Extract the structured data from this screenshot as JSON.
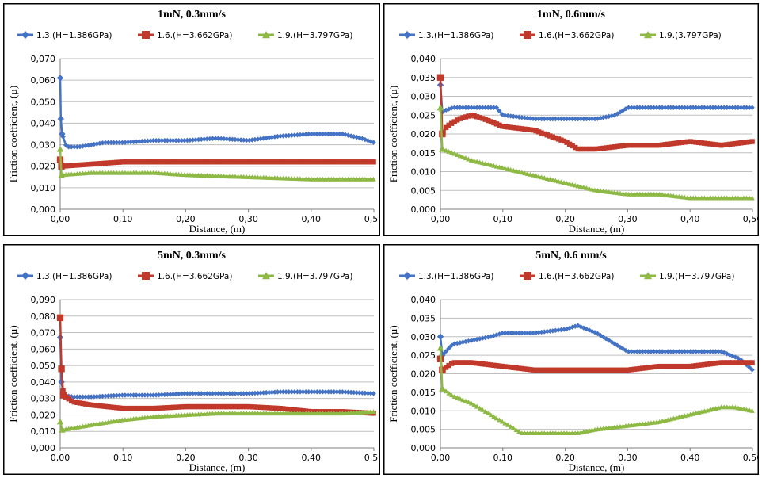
{
  "colors": {
    "s1": "#4472C4",
    "s2": "#C0392B",
    "s3": "#8DB944"
  },
  "chart_data": [
    {
      "type": "line",
      "title": "1mN, 0.3mm/s",
      "xlabel": "Distance, (m)",
      "ylabel": "Friction coefficient, (µ)",
      "xlim": [
        0,
        0.5
      ],
      "ylim": [
        0,
        0.07
      ],
      "xticks": [
        "0,00",
        "0,10",
        "0,20",
        "0,30",
        "0,40",
        "0,50"
      ],
      "yticks": [
        "0,000",
        "0,010",
        "0,020",
        "0,030",
        "0,040",
        "0,050",
        "0,060",
        "0,070"
      ],
      "grid": true,
      "legend": "top",
      "series": [
        {
          "name": "1.3.(H=1.386GPa)",
          "points": [
            [
              0,
              0.061
            ],
            [
              0.001,
              0.042
            ],
            [
              0.003,
              0.035
            ],
            [
              0.01,
              0.029
            ],
            [
              0.03,
              0.029
            ],
            [
              0.05,
              0.03
            ],
            [
              0.07,
              0.031
            ],
            [
              0.1,
              0.031
            ],
            [
              0.15,
              0.032
            ],
            [
              0.2,
              0.032
            ],
            [
              0.25,
              0.033
            ],
            [
              0.3,
              0.032
            ],
            [
              0.35,
              0.034
            ],
            [
              0.4,
              0.035
            ],
            [
              0.45,
              0.035
            ],
            [
              0.48,
              0.033
            ],
            [
              0.5,
              0.031
            ]
          ]
        },
        {
          "name": "1.6.(H=3.662GPa)",
          "points": [
            [
              0,
              0.023
            ],
            [
              0.002,
              0.02
            ],
            [
              0.05,
              0.021
            ],
            [
              0.1,
              0.022
            ],
            [
              0.2,
              0.022
            ],
            [
              0.3,
              0.022
            ],
            [
              0.4,
              0.022
            ],
            [
              0.45,
              0.022
            ],
            [
              0.5,
              0.022
            ]
          ]
        },
        {
          "name": "1.9.(H=3.797GPa)",
          "points": [
            [
              0,
              0.028
            ],
            [
              0.002,
              0.016
            ],
            [
              0.05,
              0.017
            ],
            [
              0.1,
              0.017
            ],
            [
              0.15,
              0.017
            ],
            [
              0.2,
              0.016
            ],
            [
              0.3,
              0.015
            ],
            [
              0.4,
              0.014
            ],
            [
              0.5,
              0.014
            ]
          ]
        }
      ]
    },
    {
      "type": "line",
      "title": "1mN, 0.6mm/s",
      "xlabel": "Distance, (m)",
      "ylabel": "Friction coefficient, (µ)",
      "xlim": [
        0,
        0.5
      ],
      "ylim": [
        0,
        0.04
      ],
      "xticks": [
        "0,00",
        "0,10",
        "0,20",
        "0,30",
        "0,40",
        "0,50"
      ],
      "yticks": [
        "0,000",
        "0,005",
        "0,010",
        "0,015",
        "0,020",
        "0,025",
        "0,030",
        "0,035",
        "0,040"
      ],
      "grid": true,
      "legend": "top",
      "series": [
        {
          "name": "1.3.(H=1.386GPa)",
          "points": [
            [
              0,
              0.033
            ],
            [
              0.003,
              0.026
            ],
            [
              0.02,
              0.027
            ],
            [
              0.05,
              0.027
            ],
            [
              0.09,
              0.027
            ],
            [
              0.1,
              0.025
            ],
            [
              0.15,
              0.024
            ],
            [
              0.2,
              0.024
            ],
            [
              0.25,
              0.024
            ],
            [
              0.28,
              0.025
            ],
            [
              0.3,
              0.027
            ],
            [
              0.35,
              0.027
            ],
            [
              0.4,
              0.027
            ],
            [
              0.45,
              0.027
            ],
            [
              0.5,
              0.027
            ]
          ]
        },
        {
          "name": "1.6.(H=3.662GPa)",
          "points": [
            [
              0,
              0.035
            ],
            [
              0.003,
              0.02
            ],
            [
              0.01,
              0.022
            ],
            [
              0.03,
              0.024
            ],
            [
              0.05,
              0.025
            ],
            [
              0.07,
              0.024
            ],
            [
              0.1,
              0.022
            ],
            [
              0.15,
              0.021
            ],
            [
              0.2,
              0.018
            ],
            [
              0.22,
              0.016
            ],
            [
              0.25,
              0.016
            ],
            [
              0.3,
              0.017
            ],
            [
              0.35,
              0.017
            ],
            [
              0.4,
              0.018
            ],
            [
              0.45,
              0.017
            ],
            [
              0.5,
              0.018
            ]
          ]
        },
        {
          "name": "1.9.(3.797GPa)",
          "points": [
            [
              0,
              0.027
            ],
            [
              0.003,
              0.016
            ],
            [
              0.05,
              0.013
            ],
            [
              0.1,
              0.011
            ],
            [
              0.15,
              0.009
            ],
            [
              0.2,
              0.007
            ],
            [
              0.25,
              0.005
            ],
            [
              0.3,
              0.004
            ],
            [
              0.35,
              0.004
            ],
            [
              0.4,
              0.003
            ],
            [
              0.45,
              0.003
            ],
            [
              0.5,
              0.003
            ]
          ]
        }
      ]
    },
    {
      "type": "line",
      "title": "5mN, 0.3mm/s",
      "xlabel": "Distance, (m)",
      "ylabel": "Friction coefficient, (µ)",
      "xlim": [
        0,
        0.5
      ],
      "ylim": [
        0,
        0.09
      ],
      "xticks": [
        "0,00",
        "0,10",
        "0,20",
        "0,30",
        "0,40",
        "0,50"
      ],
      "yticks": [
        "0,000",
        "0,010",
        "0,020",
        "0,030",
        "0,040",
        "0,050",
        "0,060",
        "0,070",
        "0,080",
        "0,090"
      ],
      "grid": true,
      "legend": "top",
      "series": [
        {
          "name": "1.3.(H=1.386GPa)",
          "points": [
            [
              0,
              0.067
            ],
            [
              0.002,
              0.04
            ],
            [
              0.005,
              0.032
            ],
            [
              0.02,
              0.031
            ],
            [
              0.05,
              0.031
            ],
            [
              0.1,
              0.032
            ],
            [
              0.15,
              0.032
            ],
            [
              0.2,
              0.033
            ],
            [
              0.25,
              0.033
            ],
            [
              0.3,
              0.033
            ],
            [
              0.35,
              0.034
            ],
            [
              0.4,
              0.034
            ],
            [
              0.45,
              0.034
            ],
            [
              0.5,
              0.033
            ]
          ]
        },
        {
          "name": "1.6.(H=3.662GPa)",
          "points": [
            [
              0,
              0.079
            ],
            [
              0.002,
              0.048
            ],
            [
              0.005,
              0.032
            ],
            [
              0.02,
              0.028
            ],
            [
              0.05,
              0.026
            ],
            [
              0.1,
              0.024
            ],
            [
              0.15,
              0.024
            ],
            [
              0.2,
              0.025
            ],
            [
              0.25,
              0.025
            ],
            [
              0.3,
              0.025
            ],
            [
              0.35,
              0.024
            ],
            [
              0.4,
              0.022
            ],
            [
              0.45,
              0.022
            ],
            [
              0.5,
              0.021
            ]
          ]
        },
        {
          "name": "1.9.(H=3.797GPa)",
          "points": [
            [
              0,
              0.016
            ],
            [
              0.003,
              0.011
            ],
            [
              0.02,
              0.012
            ],
            [
              0.05,
              0.014
            ],
            [
              0.1,
              0.017
            ],
            [
              0.15,
              0.019
            ],
            [
              0.2,
              0.02
            ],
            [
              0.25,
              0.021
            ],
            [
              0.3,
              0.021
            ],
            [
              0.35,
              0.021
            ],
            [
              0.4,
              0.021
            ],
            [
              0.45,
              0.021
            ],
            [
              0.5,
              0.022
            ]
          ]
        }
      ]
    },
    {
      "type": "line",
      "title": "5mN, 0.6 mm/s",
      "xlabel": "Distance, (m)",
      "ylabel": "Friction coefficient, (µ)",
      "xlim": [
        0,
        0.5
      ],
      "ylim": [
        0,
        0.04
      ],
      "xticks": [
        "0,00",
        "0,10",
        "0,20",
        "0,30",
        "0,40",
        "0,50"
      ],
      "yticks": [
        "0,000",
        "0,005",
        "0,010",
        "0,015",
        "0,020",
        "0,025",
        "0,030",
        "0,035",
        "0,040"
      ],
      "grid": true,
      "legend": "top",
      "series": [
        {
          "name": "1.3.(H=1.386GPa)",
          "points": [
            [
              0,
              0.03
            ],
            [
              0.003,
              0.025
            ],
            [
              0.02,
              0.028
            ],
            [
              0.05,
              0.029
            ],
            [
              0.08,
              0.03
            ],
            [
              0.1,
              0.031
            ],
            [
              0.15,
              0.031
            ],
            [
              0.2,
              0.032
            ],
            [
              0.22,
              0.033
            ],
            [
              0.25,
              0.031
            ],
            [
              0.28,
              0.028
            ],
            [
              0.3,
              0.026
            ],
            [
              0.35,
              0.026
            ],
            [
              0.4,
              0.026
            ],
            [
              0.45,
              0.026
            ],
            [
              0.48,
              0.024
            ],
            [
              0.5,
              0.021
            ]
          ]
        },
        {
          "name": "1.6.(H=3.662GPa)",
          "points": [
            [
              0,
              0.024
            ],
            [
              0.003,
              0.021
            ],
            [
              0.02,
              0.023
            ],
            [
              0.05,
              0.023
            ],
            [
              0.1,
              0.022
            ],
            [
              0.15,
              0.021
            ],
            [
              0.2,
              0.021
            ],
            [
              0.25,
              0.021
            ],
            [
              0.3,
              0.021
            ],
            [
              0.35,
              0.022
            ],
            [
              0.4,
              0.022
            ],
            [
              0.45,
              0.023
            ],
            [
              0.5,
              0.023
            ]
          ]
        },
        {
          "name": "1.9.(H=3.797GPa)",
          "points": [
            [
              0,
              0.027
            ],
            [
              0.003,
              0.016
            ],
            [
              0.02,
              0.014
            ],
            [
              0.05,
              0.012
            ],
            [
              0.1,
              0.007
            ],
            [
              0.13,
              0.004
            ],
            [
              0.15,
              0.004
            ],
            [
              0.2,
              0.004
            ],
            [
              0.22,
              0.004
            ],
            [
              0.25,
              0.005
            ],
            [
              0.3,
              0.006
            ],
            [
              0.35,
              0.007
            ],
            [
              0.4,
              0.009
            ],
            [
              0.45,
              0.011
            ],
            [
              0.47,
              0.011
            ],
            [
              0.5,
              0.01
            ]
          ]
        }
      ]
    }
  ]
}
